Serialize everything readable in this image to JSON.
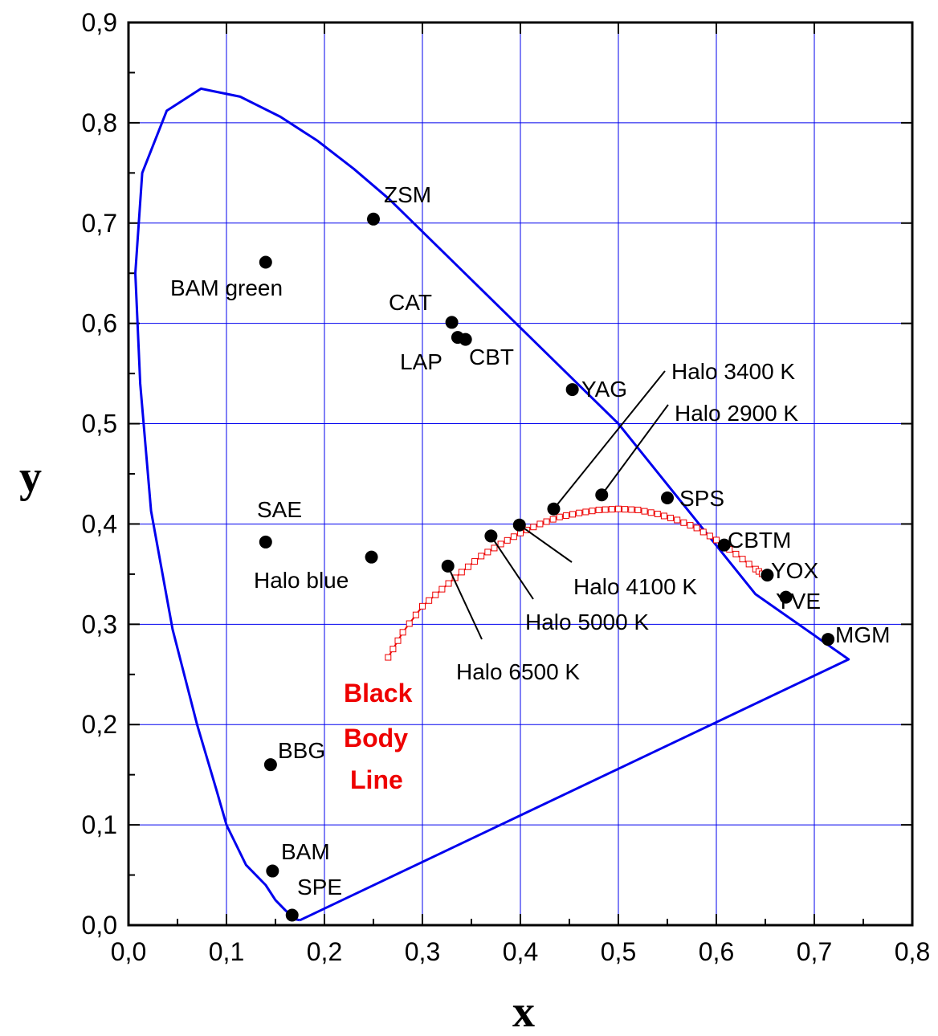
{
  "chart_data": {
    "type": "scatter",
    "title": "",
    "xlabel": "x",
    "ylabel": "y",
    "xlim": [
      0.0,
      0.8
    ],
    "ylim": [
      0.0,
      0.9
    ],
    "grid": true,
    "x_ticks": [
      "0,0",
      "0,1",
      "0,2",
      "0,3",
      "0,4",
      "0,5",
      "0,6",
      "0,7",
      "0,8"
    ],
    "y_ticks": [
      "0,0",
      "0,1",
      "0,2",
      "0,3",
      "0,4",
      "0,5",
      "0,6",
      "0,7",
      "0,8",
      "0,9"
    ],
    "colors": {
      "locus": "#0000ee",
      "grid": "#0000ee",
      "black_body": "#ee0000",
      "points": "#000000"
    },
    "spectral_locus": [
      [
        0.175,
        0.005
      ],
      [
        0.17,
        0.006
      ],
      [
        0.16,
        0.015
      ],
      [
        0.15,
        0.025
      ],
      [
        0.14,
        0.04
      ],
      [
        0.12,
        0.06
      ],
      [
        0.1,
        0.1
      ],
      [
        0.09,
        0.134
      ],
      [
        0.07,
        0.2
      ],
      [
        0.045,
        0.295
      ],
      [
        0.023,
        0.413
      ],
      [
        0.012,
        0.54
      ],
      [
        0.007,
        0.65
      ],
      [
        0.014,
        0.75
      ],
      [
        0.039,
        0.812
      ],
      [
        0.074,
        0.834
      ],
      [
        0.114,
        0.826
      ],
      [
        0.155,
        0.806
      ],
      [
        0.193,
        0.782
      ],
      [
        0.23,
        0.754
      ],
      [
        0.266,
        0.724
      ],
      [
        0.5,
        0.5
      ],
      [
        0.64,
        0.33
      ],
      [
        0.735,
        0.265
      ],
      [
        0.175,
        0.005
      ]
    ],
    "black_body_line": [
      [
        0.265,
        0.267
      ],
      [
        0.28,
        0.292
      ],
      [
        0.3,
        0.318
      ],
      [
        0.32,
        0.335
      ],
      [
        0.34,
        0.352
      ],
      [
        0.36,
        0.368
      ],
      [
        0.38,
        0.38
      ],
      [
        0.4,
        0.391
      ],
      [
        0.42,
        0.4
      ],
      [
        0.44,
        0.407
      ],
      [
        0.46,
        0.411
      ],
      [
        0.48,
        0.414
      ],
      [
        0.5,
        0.415
      ],
      [
        0.52,
        0.414
      ],
      [
        0.54,
        0.41
      ],
      [
        0.56,
        0.404
      ],
      [
        0.58,
        0.396
      ],
      [
        0.6,
        0.384
      ],
      [
        0.62,
        0.37
      ],
      [
        0.64,
        0.355
      ],
      [
        0.65,
        0.348
      ]
    ],
    "points": [
      {
        "label": "ZSM",
        "x": 0.25,
        "y": 0.704
      },
      {
        "label": "BAM green",
        "x": 0.14,
        "y": 0.661
      },
      {
        "label": "CAT",
        "x": 0.33,
        "y": 0.601
      },
      {
        "label": "LAP",
        "x": 0.336,
        "y": 0.586
      },
      {
        "label": "CBT",
        "x": 0.344,
        "y": 0.584
      },
      {
        "label": "YAG",
        "x": 0.453,
        "y": 0.534
      },
      {
        "label": "SAE",
        "x": 0.14,
        "y": 0.382
      },
      {
        "label": "Halo blue",
        "x": 0.248,
        "y": 0.367
      },
      {
        "label": "Halo 3400 K",
        "x": 0.434,
        "y": 0.415
      },
      {
        "label": "Halo 2900 K",
        "x": 0.483,
        "y": 0.429
      },
      {
        "label": "SPS",
        "x": 0.55,
        "y": 0.426
      },
      {
        "label": "Halo 4100 K",
        "x": 0.399,
        "y": 0.399
      },
      {
        "label": "Halo 5000 K",
        "x": 0.37,
        "y": 0.388
      },
      {
        "label": "Halo 6500 K",
        "x": 0.326,
        "y": 0.358
      },
      {
        "label": "CBTM",
        "x": 0.608,
        "y": 0.379
      },
      {
        "label": "YOX",
        "x": 0.652,
        "y": 0.349
      },
      {
        "label": "YVE",
        "x": 0.671,
        "y": 0.327
      },
      {
        "label": "MGM",
        "x": 0.714,
        "y": 0.285
      },
      {
        "label": "BBG",
        "x": 0.145,
        "y": 0.16
      },
      {
        "label": "BAM",
        "x": 0.147,
        "y": 0.054
      },
      {
        "label": "SPE",
        "x": 0.167,
        "y": 0.01
      }
    ],
    "annotations": [
      "Black",
      "Body",
      "Line"
    ]
  }
}
